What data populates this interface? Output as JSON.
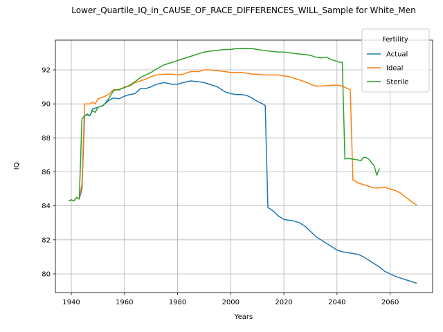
{
  "chart_data": {
    "type": "line",
    "title": "Lower_Quartile_IQ_in_CAUSE_OF_RACE_DIFFERENCES_WILL_Sample for White_Men",
    "xlabel": "Years",
    "ylabel": "IQ",
    "xlim": [
      1934,
      2076
    ],
    "ylim": [
      78.9,
      93.75
    ],
    "xticks": [
      1940,
      1960,
      1980,
      2000,
      2020,
      2040,
      2060
    ],
    "yticks": [
      80,
      82,
      84,
      86,
      88,
      90,
      92
    ],
    "grid": true,
    "legend": {
      "title": "Fertility",
      "placement": "top-right"
    },
    "series": [
      {
        "name": "Actual",
        "color": "#1f77b4",
        "x": [
          1939,
          1940,
          1941,
          1942,
          1943,
          1944,
          1945,
          1946,
          1947,
          1948,
          1950,
          1952,
          1954,
          1956,
          1958,
          1960,
          1962,
          1964,
          1966,
          1968,
          1970,
          1972,
          1975,
          1978,
          1980,
          1982,
          1985,
          1988,
          1990,
          1992,
          1995,
          1998,
          2000,
          2002,
          2004,
          2006,
          2008,
          2010,
          2012,
          2013,
          2014,
          2016,
          2018,
          2020,
          2022,
          2024,
          2026,
          2028,
          2030,
          2032,
          2034,
          2036,
          2038,
          2040,
          2042,
          2044,
          2046,
          2048,
          2050,
          2052,
          2054,
          2056,
          2058,
          2060,
          2062,
          2064,
          2066,
          2068,
          2070
        ],
        "y": [
          84.3,
          84.35,
          84.3,
          84.5,
          84.4,
          85.0,
          89.3,
          89.4,
          89.3,
          89.7,
          89.8,
          89.9,
          90.2,
          90.35,
          90.3,
          90.45,
          90.55,
          90.6,
          90.9,
          90.9,
          91.0,
          91.15,
          91.25,
          91.15,
          91.15,
          91.25,
          91.35,
          91.3,
          91.25,
          91.15,
          91.0,
          90.7,
          90.6,
          90.55,
          90.55,
          90.5,
          90.35,
          90.15,
          90.0,
          89.9,
          83.9,
          83.7,
          83.4,
          83.2,
          83.15,
          83.1,
          83.0,
          82.8,
          82.5,
          82.2,
          82.0,
          81.8,
          81.6,
          81.4,
          81.3,
          81.25,
          81.2,
          81.15,
          81.0,
          80.8,
          80.6,
          80.4,
          80.15,
          80.0,
          79.85,
          79.75,
          79.65,
          79.55,
          79.45
        ]
      },
      {
        "name": "Ideal",
        "color": "#ff7f0e",
        "x": [
          1939,
          1940,
          1941,
          1942,
          1943,
          1944,
          1945,
          1946,
          1947,
          1948,
          1949,
          1950,
          1952,
          1954,
          1956,
          1958,
          1960,
          1962,
          1964,
          1966,
          1968,
          1970,
          1972,
          1975,
          1978,
          1980,
          1982,
          1985,
          1988,
          1990,
          1992,
          1995,
          1998,
          2000,
          2002,
          2004,
          2006,
          2008,
          2010,
          2012,
          2015,
          2018,
          2020,
          2022,
          2025,
          2028,
          2030,
          2032,
          2035,
          2038,
          2040,
          2042,
          2044,
          2045,
          2046,
          2047,
          2048,
          2050,
          2052,
          2054,
          2056,
          2058,
          2060,
          2062,
          2064,
          2066,
          2068,
          2070
        ],
        "y": [
          84.3,
          84.35,
          84.3,
          84.5,
          84.4,
          85.3,
          90.0,
          90.0,
          90.0,
          90.1,
          90.0,
          90.3,
          90.4,
          90.55,
          90.85,
          90.8,
          91.0,
          91.05,
          91.25,
          91.35,
          91.45,
          91.6,
          91.7,
          91.75,
          91.75,
          91.7,
          91.75,
          91.9,
          91.9,
          92.0,
          92.0,
          91.95,
          91.9,
          91.85,
          91.85,
          91.85,
          91.8,
          91.75,
          91.75,
          91.7,
          91.7,
          91.7,
          91.65,
          91.6,
          91.45,
          91.3,
          91.15,
          91.05,
          91.05,
          91.1,
          91.1,
          91.05,
          90.9,
          90.85,
          85.5,
          85.45,
          85.35,
          85.25,
          85.15,
          85.05,
          85.05,
          85.1,
          85.0,
          84.9,
          84.75,
          84.5,
          84.25,
          84.05
        ]
      },
      {
        "name": "Sterile",
        "color": "#2ca02c",
        "x": [
          1939,
          1940,
          1941,
          1942,
          1943,
          1944,
          1945,
          1946,
          1947,
          1948,
          1949,
          1950,
          1952,
          1954,
          1956,
          1958,
          1960,
          1962,
          1964,
          1966,
          1968,
          1970,
          1972,
          1975,
          1978,
          1980,
          1982,
          1985,
          1988,
          1990,
          1992,
          1995,
          1998,
          2000,
          2002,
          2004,
          2006,
          2008,
          2010,
          2012,
          2015,
          2018,
          2020,
          2022,
          2025,
          2028,
          2030,
          2032,
          2034,
          2036,
          2038,
          2040,
          2041,
          2042,
          2043,
          2044,
          2046,
          2048,
          2049,
          2050,
          2051,
          2052,
          2053,
          2054,
          2055,
          2056
        ],
        "y": [
          84.3,
          84.35,
          84.3,
          84.5,
          84.4,
          89.1,
          89.3,
          89.35,
          89.3,
          89.6,
          89.5,
          89.8,
          89.9,
          90.3,
          90.8,
          90.85,
          90.95,
          91.1,
          91.3,
          91.55,
          91.7,
          91.85,
          92.05,
          92.3,
          92.45,
          92.55,
          92.65,
          92.8,
          92.95,
          93.05,
          93.1,
          93.15,
          93.2,
          93.2,
          93.25,
          93.25,
          93.25,
          93.25,
          93.2,
          93.15,
          93.1,
          93.05,
          93.05,
          93.0,
          92.95,
          92.9,
          92.85,
          92.75,
          92.7,
          92.75,
          92.6,
          92.5,
          92.45,
          92.45,
          86.75,
          86.8,
          86.75,
          86.7,
          86.65,
          86.85,
          86.85,
          86.75,
          86.55,
          86.35,
          85.8,
          86.2
        ]
      }
    ]
  }
}
